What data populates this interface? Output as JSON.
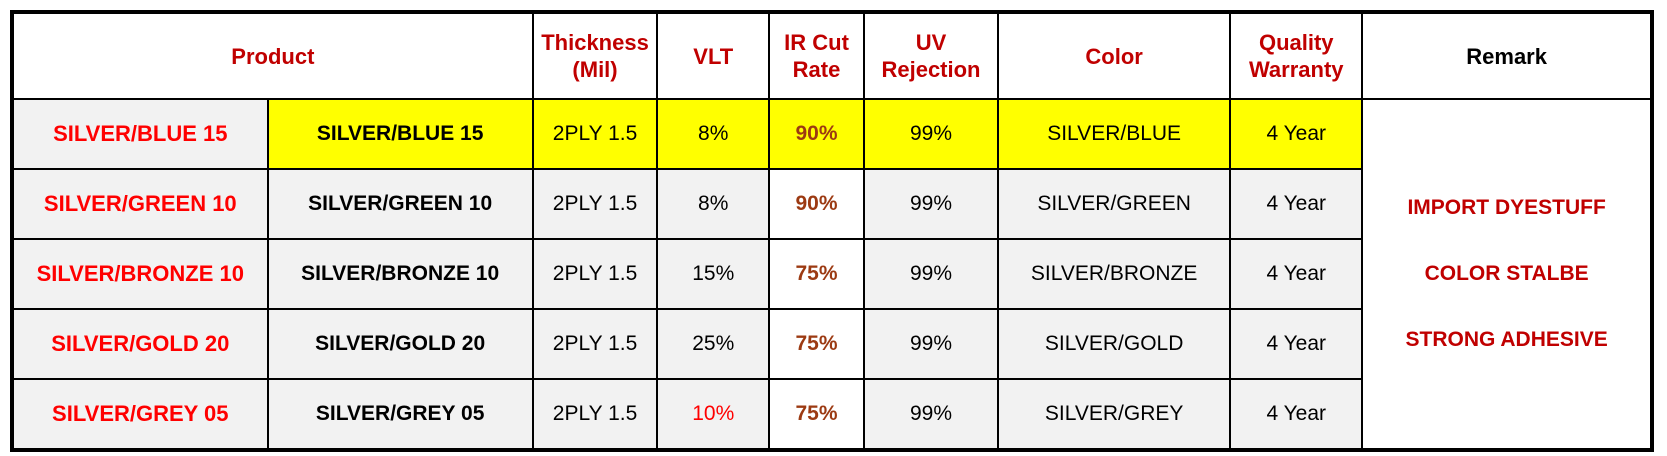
{
  "headers": {
    "product": "Product",
    "thickness": [
      "Thickness",
      "(Mil)"
    ],
    "vlt": "VLT",
    "ir": [
      "IR Cut",
      "Rate"
    ],
    "uv": [
      "UV",
      "Rejection"
    ],
    "color": "Color",
    "warranty": [
      "Quality",
      "Warranty"
    ],
    "remark": "Remark"
  },
  "rows": [
    {
      "name": "SILVER/BLUE 15",
      "model": "SILVER/BLUE 15",
      "thickness": "2PLY 1.5",
      "vlt": "8%",
      "ir": "90%",
      "uv": "99%",
      "color": "SILVER/BLUE",
      "warranty": "4 Year"
    },
    {
      "name": "SILVER/GREEN 10",
      "model": "SILVER/GREEN 10",
      "thickness": "2PLY 1.5",
      "vlt": "8%",
      "ir": "90%",
      "uv": "99%",
      "color": "SILVER/GREEN",
      "warranty": "4 Year"
    },
    {
      "name": "SILVER/BRONZE 10",
      "model": "SILVER/BRONZE 10",
      "thickness": "2PLY 1.5",
      "vlt": "15%",
      "ir": "75%",
      "uv": "99%",
      "color": "SILVER/BRONZE",
      "warranty": "4 Year"
    },
    {
      "name": "SILVER/GOLD 20",
      "model": "SILVER/GOLD 20",
      "thickness": "2PLY 1.5",
      "vlt": "25%",
      "ir": "75%",
      "uv": "99%",
      "color": "SILVER/GOLD",
      "warranty": "4 Year"
    },
    {
      "name": "SILVER/GREY 05",
      "model": "SILVER/GREY 05",
      "thickness": "2PLY 1.5",
      "vlt": "10%",
      "ir": "75%",
      "uv": "99%",
      "color": "SILVER/GREY",
      "warranty": "4 Year"
    }
  ],
  "remarks": [
    "",
    "IMPORT DYESTUFF",
    "COLOR STALBE",
    "STRONG ADHESIVE",
    ""
  ],
  "colors": {
    "highlight": "#ffff00",
    "header_text": "#c00000",
    "name_red": "#ff0000",
    "ir_text": "#9c3a12"
  }
}
